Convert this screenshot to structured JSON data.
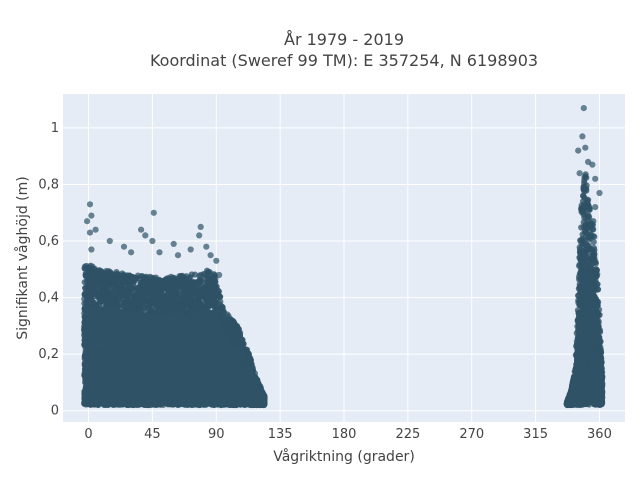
{
  "chart_data": {
    "type": "scatter",
    "title_lines": [
      "År 1979 - 2019",
      "Koordinat (Sweref 99 TM): E 357254, N 6198903"
    ],
    "xlabel": "Vågriktning (grader)",
    "ylabel": "Signifikant våghöjd (m)",
    "xlim": [
      -18,
      378
    ],
    "ylim": [
      -0.04,
      1.12
    ],
    "x_ticks": [
      0,
      45,
      90,
      135,
      180,
      225,
      270,
      315,
      360
    ],
    "x_tick_labels": [
      "0",
      "45",
      "90",
      "135",
      "180",
      "225",
      "270",
      "315",
      "360"
    ],
    "y_ticks": [
      0,
      0.2,
      0.4,
      0.6,
      0.8,
      1
    ],
    "y_tick_labels": [
      "0",
      "0,2",
      "0,4",
      "0,6",
      "0,8",
      "1"
    ],
    "grid": true,
    "legend": "none",
    "marker_color": "#2f5266",
    "background_color": "#e5ecf6",
    "clusters": [
      {
        "x_range": [
          -3,
          124
        ],
        "y_range": [
          0.02,
          0.5
        ],
        "profile": [
          [
            -3,
            0.52
          ],
          [
            10,
            0.5
          ],
          [
            30,
            0.48
          ],
          [
            50,
            0.47
          ],
          [
            70,
            0.48
          ],
          [
            88,
            0.5
          ],
          [
            95,
            0.36
          ],
          [
            105,
            0.3
          ],
          [
            113,
            0.2
          ],
          [
            118,
            0.12
          ],
          [
            124,
            0.05
          ]
        ]
      },
      {
        "x_range": [
          337,
          362
        ],
        "y_range": [
          0.02,
          0.9
        ],
        "profile": [
          [
            337,
            0.03
          ],
          [
            340,
            0.07
          ],
          [
            343,
            0.15
          ],
          [
            345,
            0.4
          ],
          [
            347,
            0.72
          ],
          [
            350,
            0.86
          ],
          [
            353,
            0.76
          ],
          [
            356,
            0.66
          ],
          [
            358,
            0.52
          ],
          [
            360,
            0.35
          ],
          [
            362,
            0.12
          ]
        ]
      }
    ],
    "outliers": [
      [
        1,
        0.73
      ],
      [
        2,
        0.69
      ],
      [
        -1,
        0.67
      ],
      [
        1,
        0.63
      ],
      [
        5,
        0.64
      ],
      [
        2,
        0.57
      ],
      [
        15,
        0.6
      ],
      [
        25,
        0.58
      ],
      [
        30,
        0.56
      ],
      [
        37,
        0.64
      ],
      [
        40,
        0.62
      ],
      [
        46,
        0.7
      ],
      [
        45,
        0.6
      ],
      [
        50,
        0.56
      ],
      [
        60,
        0.59
      ],
      [
        63,
        0.55
      ],
      [
        72,
        0.57
      ],
      [
        78,
        0.62
      ],
      [
        79,
        0.65
      ],
      [
        83,
        0.58
      ],
      [
        86,
        0.55
      ],
      [
        90,
        0.53
      ],
      [
        92,
        0.48
      ],
      [
        345,
        0.92
      ],
      [
        348,
        0.97
      ],
      [
        349,
        1.07
      ],
      [
        350,
        0.93
      ],
      [
        352,
        0.88
      ],
      [
        355,
        0.87
      ],
      [
        357,
        0.82
      ],
      [
        360,
        0.77
      ],
      [
        346,
        0.84
      ],
      [
        357,
        0.72
      ]
    ]
  }
}
